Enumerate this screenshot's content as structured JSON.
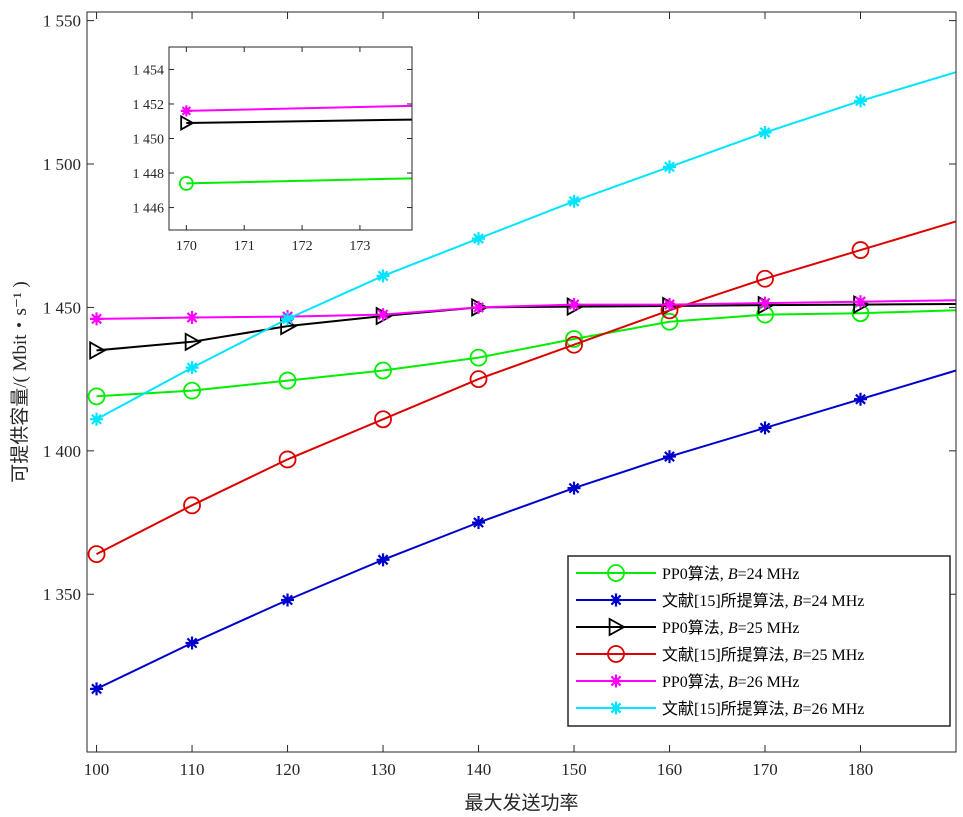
{
  "chart_data": [
    {
      "type": "line",
      "xlabel": "最大发送功率",
      "ylabel": "可提供容量/( Mbit・s⁻¹ )",
      "xlim": [
        99,
        190
      ],
      "ylim": [
        1295,
        1553
      ],
      "xticks": [
        100,
        110,
        120,
        130,
        140,
        150,
        160,
        170,
        180
      ],
      "xtick_labels": [
        "100",
        "110",
        "120",
        "130",
        "140",
        "150",
        "160",
        "170",
        "180"
      ],
      "yticks": [
        1350,
        1400,
        1450,
        1500,
        1550
      ],
      "ytick_labels": [
        "1 350",
        "1 400",
        "1 450",
        "1 500",
        "1 550"
      ],
      "grid": false,
      "legend_position": "bottom-right",
      "x": [
        100,
        110,
        120,
        130,
        140,
        150,
        160,
        170,
        180,
        190
      ],
      "series": [
        {
          "name": "PP0算法, B=24 MHz",
          "legend_parts": [
            "PP0算法, ",
            "B",
            "=24 MHz"
          ],
          "color": "#00ee00",
          "marker": "circle",
          "values": [
            1419,
            1421,
            1424.5,
            1428,
            1432.5,
            1439,
            1445,
            1447.5,
            1448,
            1449
          ]
        },
        {
          "name": "文献[15]所提算法, B=24 MHz",
          "legend_parts": [
            "文献[15]所提算法, ",
            "B",
            "=24 MHz"
          ],
          "color": "#0000cc",
          "marker": "asterisk",
          "values": [
            1317,
            1333,
            1348,
            1362,
            1375,
            1387,
            1398,
            1408,
            1418,
            1428
          ]
        },
        {
          "name": "PP0算法, B=25 MHz",
          "legend_parts": [
            "PP0算法, ",
            "B",
            "=25 MHz"
          ],
          "color": "#000000",
          "marker": "triangle-right",
          "values": [
            1435,
            1438,
            1443.5,
            1447,
            1450,
            1450.3,
            1450.5,
            1450.8,
            1451,
            1451.2
          ]
        },
        {
          "name": "文献[15]所提算法, B=25 MHz",
          "legend_parts": [
            "文献[15]所提算法, ",
            "B",
            "=25 MHz"
          ],
          "color": "#dd0000",
          "marker": "circle",
          "values": [
            1364,
            1381,
            1397,
            1411,
            1425,
            1437,
            1449,
            1460,
            1470,
            1480
          ]
        },
        {
          "name": "PP0算法, B=26 MHz",
          "legend_parts": [
            "PP0算法, ",
            "B",
            "=26 MHz"
          ],
          "color": "#ff00ff",
          "marker": "asterisk",
          "values": [
            1446,
            1446.5,
            1446.8,
            1447.5,
            1450,
            1451,
            1451,
            1451.5,
            1452,
            1452.5
          ]
        },
        {
          "name": "文献[15]所提算法, B=26 MHz",
          "legend_parts": [
            "文献[15]所提算法, ",
            "B",
            "=26 MHz"
          ],
          "color": "#00e5ff",
          "marker": "asterisk",
          "values": [
            1411,
            1429,
            1446,
            1461,
            1474,
            1487,
            1499,
            1511,
            1522,
            1532
          ]
        }
      ]
    },
    {
      "type": "line",
      "inset": true,
      "xlim": [
        169.7,
        173.9
      ],
      "ylim": [
        1444.7,
        1455.3
      ],
      "xticks": [
        170,
        171,
        172,
        173
      ],
      "xtick_labels": [
        "170",
        "171",
        "172",
        "173"
      ],
      "yticks": [
        1446,
        1448,
        1450,
        1452,
        1454
      ],
      "ytick_labels": [
        "1 446",
        "1 448",
        "1 450",
        "1 452",
        "1 454"
      ],
      "x": [
        170,
        174
      ],
      "series": [
        {
          "color": "#ff00ff",
          "marker": "asterisk",
          "values": [
            1451.6,
            1451.9
          ]
        },
        {
          "color": "#000000",
          "marker": "triangle-right",
          "values": [
            1450.9,
            1451.1
          ]
        },
        {
          "color": "#00ee00",
          "marker": "circle",
          "values": [
            1447.4,
            1447.7
          ]
        }
      ]
    }
  ]
}
